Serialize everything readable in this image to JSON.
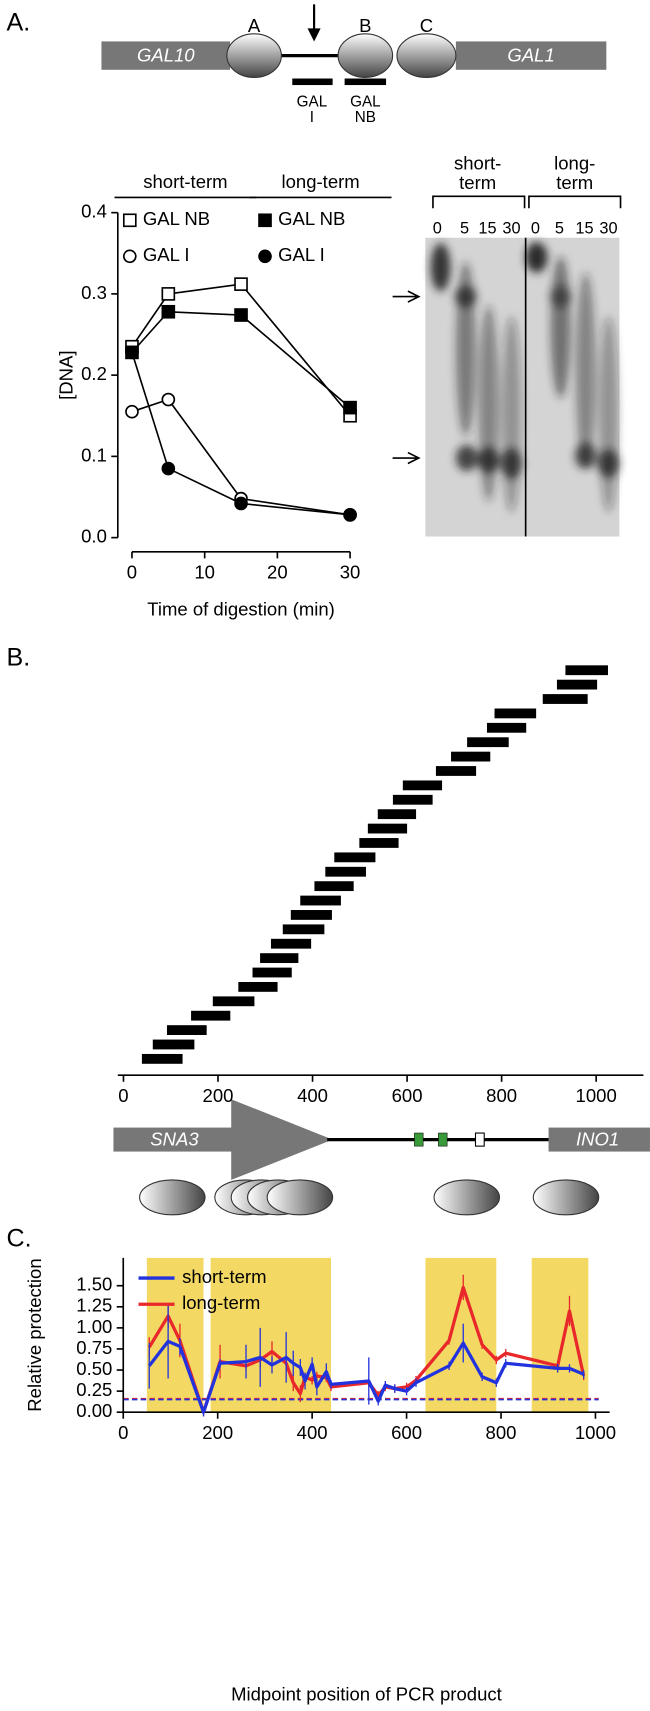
{
  "panel_labels": [
    "A.",
    "B.",
    "C."
  ],
  "panel_a_map": {
    "genes": [
      "GAL10",
      "GAL1"
    ],
    "nucleosomes": [
      "A",
      "B",
      "C"
    ],
    "regions": [
      [
        "GAL",
        "I"
      ],
      [
        "GAL",
        "NB"
      ]
    ]
  },
  "gel": {
    "headers": [
      [
        "short-",
        "term"
      ],
      [
        "long-",
        "term"
      ]
    ],
    "lanes": [
      "0",
      "5",
      "15",
      "30",
      "0",
      "5",
      "15",
      "30"
    ]
  },
  "panel_b_map": {
    "genes": [
      "SNA3",
      "INO1"
    ]
  },
  "chart_data": [
    {
      "type": "line",
      "ylabel": "[DNA]",
      "xlabel": "Time of digestion (min)",
      "x": [
        0,
        5,
        15,
        30
      ],
      "xlim": [
        0,
        30
      ],
      "xticks": [
        0,
        10,
        20,
        30
      ],
      "ylim": [
        0,
        0.4
      ],
      "yticks": [
        {
          "value": 0,
          "label": "0.0"
        },
        0.1,
        0.2,
        0.3,
        0.4
      ],
      "legend_titles": [
        "short-term",
        "long-term"
      ],
      "series": [
        {
          "name": "GAL NB",
          "group": 0,
          "marker": "square",
          "filled": false,
          "color": "#000000",
          "values": [
            0.235,
            0.3,
            0.312,
            0.15
          ]
        },
        {
          "name": "GAL I",
          "group": 0,
          "marker": "circle",
          "filled": false,
          "color": "#000000",
          "values": [
            0.155,
            0.17,
            0.048,
            0.028
          ]
        },
        {
          "name": "GAL NB",
          "group": 1,
          "marker": "square",
          "filled": true,
          "color": "#000000",
          "values": [
            0.228,
            0.278,
            0.274,
            0.16
          ]
        },
        {
          "name": "GAL I",
          "group": 1,
          "marker": "circle",
          "filled": true,
          "color": "#000000",
          "values": [
            0.228,
            0.085,
            0.042,
            0.028
          ]
        }
      ]
    },
    {
      "type": "range",
      "xlim": [
        -12,
        1100
      ],
      "xticks": [
        0,
        200,
        400,
        600,
        800,
        1000
      ],
      "color": "#000000",
      "starts": [
        39,
        62,
        92,
        143,
        189,
        243,
        273,
        289,
        312,
        337,
        354,
        374,
        404,
        427,
        446,
        499,
        517,
        538,
        570,
        591,
        661,
        693,
        727,
        769,
        785,
        887,
        917,
        935
      ],
      "ends": [
        125,
        150,
        176,
        226,
        277,
        326,
        356,
        370,
        397,
        425,
        441,
        460,
        487,
        513,
        533,
        582,
        600,
        619,
        654,
        674,
        746,
        776,
        815,
        852,
        873,
        982,
        1002,
        1025
      ]
    },
    {
      "type": "line",
      "ylabel": "Relative protection",
      "xlabel": "Midpoint position of PCR product",
      "xlim": [
        0,
        1030
      ],
      "xticks": [
        0,
        200,
        400,
        600,
        800,
        1000
      ],
      "ylim": [
        0,
        1.83
      ],
      "yticks": [
        {
          "value": 0,
          "label": "0.00"
        },
        0.25,
        {
          "value": 0.5,
          "label": "0.50"
        },
        0.75,
        {
          "value": 1,
          "label": "1.00"
        },
        1.25,
        {
          "value": 1.5,
          "label": "1.50"
        }
      ],
      "legend": "upper left",
      "shaded_regions": [
        [
          50,
          170
        ],
        [
          185,
          440
        ],
        [
          640,
          790
        ],
        [
          865,
          985
        ]
      ],
      "shade_color": "#f3d964",
      "baselines": [
        {
          "value": 0.16,
          "color": "#e8282a"
        },
        {
          "value": 0.15,
          "color": "#2233dd"
        }
      ],
      "x": [
        55,
        95,
        120,
        170,
        205,
        260,
        290,
        315,
        345,
        360,
        375,
        385,
        400,
        410,
        430,
        440,
        520,
        540,
        555,
        575,
        600,
        620,
        690,
        720,
        760,
        790,
        810,
        920,
        945,
        975
      ],
      "series": [
        {
          "name": "long-term",
          "color": "#e8282a",
          "values": [
            0.77,
            1.14,
            0.85,
            0,
            0.6,
            0.55,
            0.62,
            0.72,
            0.58,
            0.35,
            0.22,
            0.42,
            0.38,
            0.43,
            0.41,
            0.3,
            0.35,
            0.2,
            0.3,
            0.28,
            0.3,
            0.38,
            0.85,
            1.48,
            0.8,
            0.62,
            0.7,
            0.55,
            1.2,
            0.43
          ],
          "errors": [
            0.12,
            0.14,
            0.2,
            0.05,
            0.2,
            0.05,
            0.1,
            0.12,
            0.1,
            0.1,
            0.1,
            0.05,
            0.05,
            0.05,
            0.05,
            0.05,
            0.05,
            0.05,
            0.05,
            0.05,
            0.05,
            0.05,
            0.05,
            0.15,
            0.05,
            0.05,
            0.05,
            0.05,
            0.18,
            0.05
          ]
        },
        {
          "name": "short-term",
          "color": "#2233dd",
          "values": [
            0.55,
            0.84,
            0.78,
            0,
            0.58,
            0.6,
            0.65,
            0.56,
            0.65,
            0.58,
            0.53,
            0.37,
            0.57,
            0.3,
            0.48,
            0.33,
            0.37,
            0.13,
            0.32,
            0.28,
            0.25,
            0.35,
            0.55,
            0.82,
            0.42,
            0.35,
            0.58,
            0.52,
            0.52,
            0.45
          ],
          "errors": [
            0.27,
            0.44,
            0.1,
            0.05,
            0.05,
            0.2,
            0.35,
            0.1,
            0.3,
            0.15,
            0.1,
            0.1,
            0.08,
            0.1,
            0.1,
            0.05,
            0.28,
            0.05,
            0.05,
            0.05,
            0.05,
            0.05,
            0.05,
            0.23,
            0.05,
            0.05,
            0.05,
            0.05,
            0.05,
            0.05
          ]
        }
      ]
    }
  ]
}
